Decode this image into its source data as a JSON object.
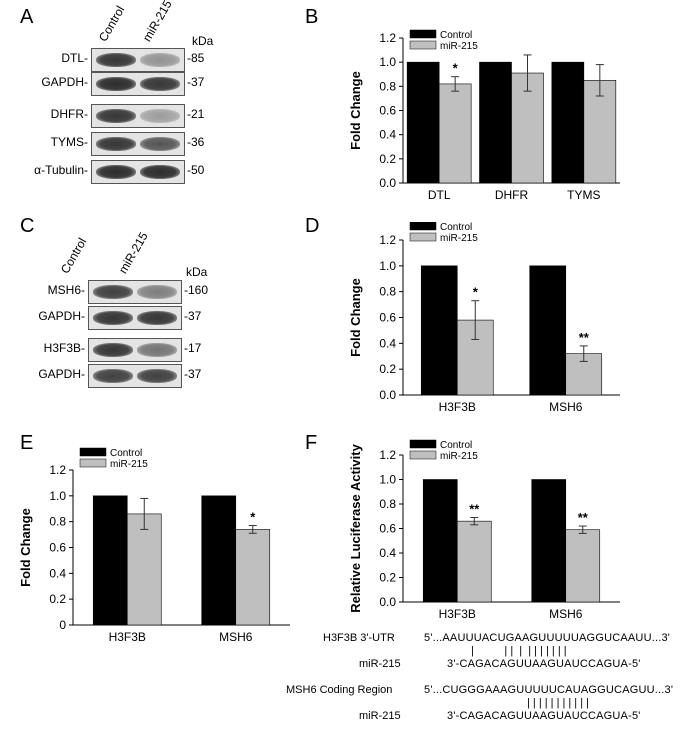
{
  "panels": {
    "A": "A",
    "B": "B",
    "C": "C",
    "D": "D",
    "E": "E",
    "F": "F"
  },
  "kda": "kDa",
  "lanes": [
    "Control",
    "miR-215"
  ],
  "blotA": [
    {
      "label": "DTL-",
      "kda": "-85",
      "ctrl": 0.85,
      "mir": 0.4
    },
    {
      "label": "GAPDH-",
      "kda": "-37",
      "ctrl": 0.9,
      "mir": 0.85
    },
    {
      "label": "DHFR-",
      "kda": "-21",
      "ctrl": 0.85,
      "mir": 0.35
    },
    {
      "label": "TYMS-",
      "kda": "-36",
      "ctrl": 0.85,
      "mir": 0.7
    },
    {
      "label": "α-Tubulin-",
      "kda": "-50",
      "ctrl": 0.9,
      "mir": 0.9
    }
  ],
  "blotC": [
    {
      "label": "MSH6-",
      "kda": "-160",
      "ctrl": 0.8,
      "mir": 0.5
    },
    {
      "label": "GAPDH-",
      "kda": "-37",
      "ctrl": 0.85,
      "mir": 0.85
    },
    {
      "label": "H3F3B-",
      "kda": "-17",
      "ctrl": 0.85,
      "mir": 0.55
    },
    {
      "label": "GAPDH-",
      "kda": "-37",
      "ctrl": 0.8,
      "mir": 0.8
    }
  ],
  "legend": {
    "control": "Control",
    "mir": "miR-215"
  },
  "colors": {
    "control": "#000000",
    "mir": "#bfbfbf"
  },
  "chart_data": [
    {
      "id": "B",
      "type": "bar",
      "categories": [
        "DTL",
        "DHFR",
        "TYMS"
      ],
      "series": [
        {
          "name": "Control",
          "values": [
            1.0,
            1.0,
            1.0
          ],
          "errors": [
            0,
            0,
            0
          ]
        },
        {
          "name": "miR-215",
          "values": [
            0.82,
            0.91,
            0.85
          ],
          "errors": [
            0.06,
            0.15,
            0.13
          ]
        }
      ],
      "sig": [
        "*",
        "",
        ""
      ],
      "ylabel": "Fold Change",
      "ylim": [
        0,
        1.2
      ],
      "yticks": [
        "0.0",
        "0.2",
        "0.4",
        "0.6",
        "0.8",
        "1.0",
        "1.2"
      ],
      "legend": "top-left"
    },
    {
      "id": "D",
      "type": "bar",
      "categories": [
        "H3F3B",
        "MSH6"
      ],
      "series": [
        {
          "name": "Control",
          "values": [
            1.0,
            1.0
          ],
          "errors": [
            0,
            0
          ]
        },
        {
          "name": "miR-215",
          "values": [
            0.58,
            0.32
          ],
          "errors": [
            0.15,
            0.06
          ]
        }
      ],
      "sig": [
        "*",
        "**"
      ],
      "ylabel": "Fold Change",
      "ylim": [
        0,
        1.2
      ],
      "yticks": [
        "0.0",
        "0.2",
        "0.4",
        "0.6",
        "0.8",
        "1.0",
        "1.2"
      ],
      "legend": "top-left"
    },
    {
      "id": "E",
      "type": "bar",
      "categories": [
        "H3F3B",
        "MSH6"
      ],
      "series": [
        {
          "name": "Control",
          "values": [
            1.0,
            1.0
          ],
          "errors": [
            0,
            0
          ]
        },
        {
          "name": "miR-215",
          "values": [
            0.86,
            0.74
          ],
          "errors": [
            0.12,
            0.03
          ]
        }
      ],
      "sig": [
        "",
        "*"
      ],
      "ylabel": "Fold Change",
      "ylim": [
        0,
        1.2
      ],
      "yticks": [
        "0",
        "0.2",
        "0.4",
        "0.6",
        "0.8",
        "1.0",
        "1.2"
      ],
      "legend": "top-left"
    },
    {
      "id": "F",
      "type": "bar",
      "categories": [
        "H3F3B",
        "MSH6"
      ],
      "series": [
        {
          "name": "Control",
          "values": [
            1.0,
            1.0
          ],
          "errors": [
            0,
            0
          ]
        },
        {
          "name": "miR-215",
          "values": [
            0.66,
            0.59
          ],
          "errors": [
            0.03,
            0.03
          ]
        }
      ],
      "sig": [
        "**",
        "**"
      ],
      "ylabel": "Relative Luciferase Activity",
      "ylim": [
        0,
        1.2
      ],
      "yticks": [
        "0.0",
        "0.2",
        "0.4",
        "0.6",
        "0.8",
        "1.0",
        "1.2"
      ],
      "legend": "top-left"
    }
  ],
  "sequences": {
    "h3_label": "H3F3B 3'-UTR",
    "h3_seq": "5'...AAUUUACUGAAGUUUUUAGGUCAAUU...3'",
    "h3_pair": "|          | |  |  | | | | | | |",
    "mir1_label": "miR-215",
    "mir1_seq": "3'-CAGACAGUUAAGUAUCCAGUA-5'",
    "msh_label": "MSH6 Coding Region",
    "msh_seq": "5'...CUGGGAAAGUUUUUCAUAGGUCAGUU...3'",
    "msh_pair": "| | | | | | | | | | |",
    "mir2_label": "miR-215",
    "mir2_seq": "3'-CAGACAGUUAAGUAUCCAGUA-5'"
  }
}
